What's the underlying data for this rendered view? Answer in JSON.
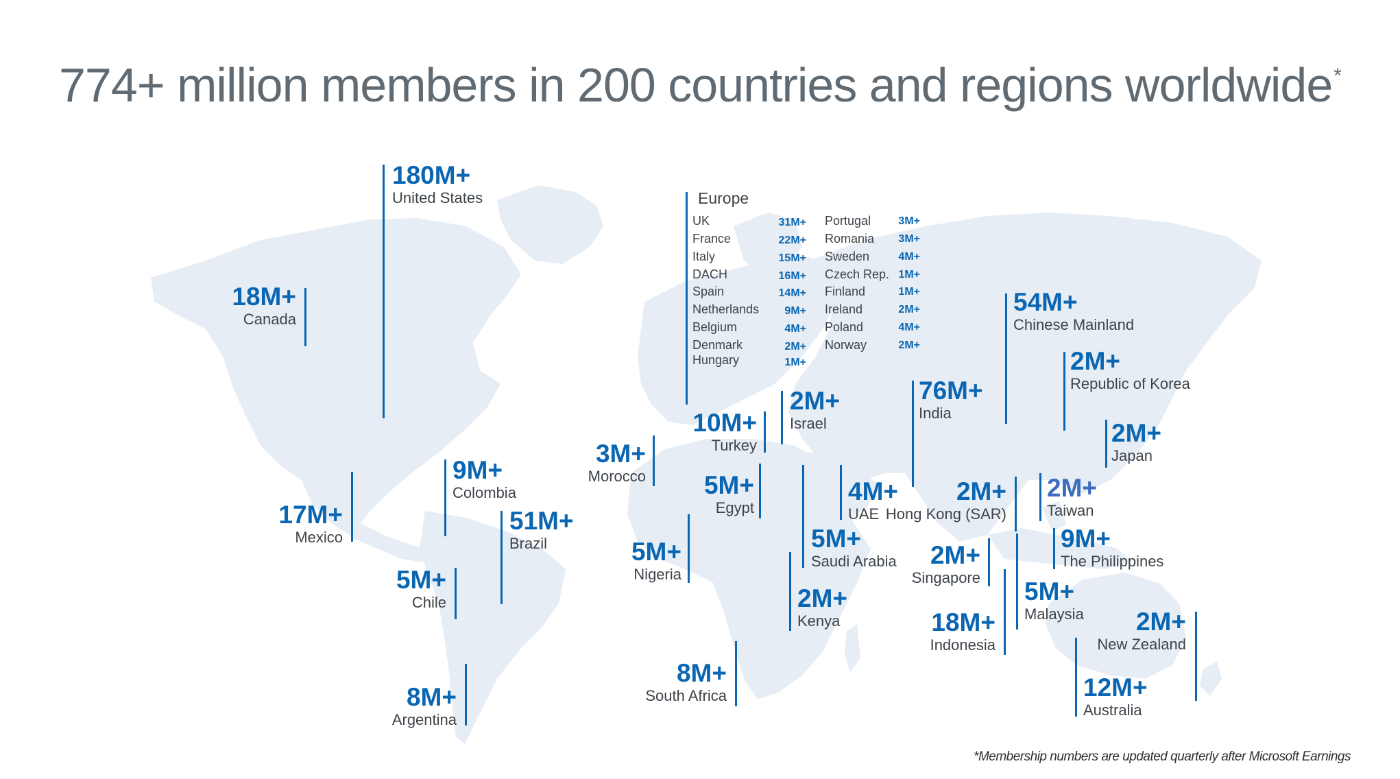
{
  "title": "774+ million members in 200 countries and regions worldwide",
  "title_mark": "*",
  "footnote": "*Membership numbers are updated quarterly after Microsoft Earnings",
  "colors": {
    "accent": "#0a66b2",
    "land": "#e6edf4",
    "text": "#3d4349",
    "title": "#5f6a72"
  },
  "countries": [
    {
      "id": "united-states",
      "value": "180M+",
      "name": "United States"
    },
    {
      "id": "canada",
      "value": "18M+",
      "name": "Canada"
    },
    {
      "id": "mexico",
      "value": "17M+",
      "name": "Mexico"
    },
    {
      "id": "colombia",
      "value": "9M+",
      "name": "Colombia"
    },
    {
      "id": "brazil",
      "value": "51M+",
      "name": "Brazil"
    },
    {
      "id": "chile",
      "value": "5M+",
      "name": "Chile"
    },
    {
      "id": "argentina",
      "value": "8M+",
      "name": "Argentina"
    },
    {
      "id": "morocco",
      "value": "3M+",
      "name": "Morocco"
    },
    {
      "id": "turkey",
      "value": "10M+",
      "name": "Turkey"
    },
    {
      "id": "israel",
      "value": "2M+",
      "name": "Israel"
    },
    {
      "id": "egypt",
      "value": "5M+",
      "name": "Egypt"
    },
    {
      "id": "nigeria",
      "value": "5M+",
      "name": "Nigeria"
    },
    {
      "id": "south-africa",
      "value": "8M+",
      "name": "South Africa"
    },
    {
      "id": "saudi-arabia",
      "value": "5M+",
      "name": "Saudi Arabia"
    },
    {
      "id": "uae",
      "value": "4M+",
      "name": "UAE"
    },
    {
      "id": "kenya",
      "value": "2M+",
      "name": "Kenya"
    },
    {
      "id": "india",
      "value": "76M+",
      "name": "India"
    },
    {
      "id": "chinese-mainland",
      "value": "54M+",
      "name": "Chinese Mainland"
    },
    {
      "id": "korea",
      "value": "2M+",
      "name": "Republic of Korea"
    },
    {
      "id": "japan",
      "value": "2M+",
      "name": "Japan"
    },
    {
      "id": "hong-kong",
      "value": "2M+",
      "name": "Hong Kong (SAR)"
    },
    {
      "id": "taiwan",
      "value": "2M+",
      "name": "Taiwan"
    },
    {
      "id": "philippines",
      "value": "9M+",
      "name": "The Philippines"
    },
    {
      "id": "singapore",
      "value": "2M+",
      "name": "Singapore"
    },
    {
      "id": "malaysia",
      "value": "5M+",
      "name": "Malaysia"
    },
    {
      "id": "indonesia",
      "value": "18M+",
      "name": "Indonesia"
    },
    {
      "id": "new-zealand",
      "value": "2M+",
      "name": "New Zealand"
    },
    {
      "id": "australia",
      "value": "12M+",
      "name": "Australia"
    }
  ],
  "europe": {
    "title": "Europe",
    "left": [
      {
        "name": "UK",
        "value": "31M+"
      },
      {
        "name": "France",
        "value": "22M+"
      },
      {
        "name": "Italy",
        "value": "15M+"
      },
      {
        "name": "DACH",
        "value": "16M+"
      },
      {
        "name": "Spain",
        "value": "14M+"
      },
      {
        "name": "Netherlands",
        "value": "9M+"
      },
      {
        "name": "Belgium",
        "value": "4M+"
      },
      {
        "name": "Denmark",
        "value": "2M+"
      },
      {
        "name": "Hungary",
        "value": "1M+"
      }
    ],
    "right": [
      {
        "name": "Portugal",
        "value": "3M+"
      },
      {
        "name": "Romania",
        "value": "3M+"
      },
      {
        "name": "Sweden",
        "value": "4M+"
      },
      {
        "name": "Czech Rep.",
        "value": "1M+"
      },
      {
        "name": "Finland",
        "value": "1M+"
      },
      {
        "name": "Ireland",
        "value": "2M+"
      },
      {
        "name": "Poland",
        "value": "4M+"
      },
      {
        "name": "Norway",
        "value": "2M+"
      }
    ]
  }
}
